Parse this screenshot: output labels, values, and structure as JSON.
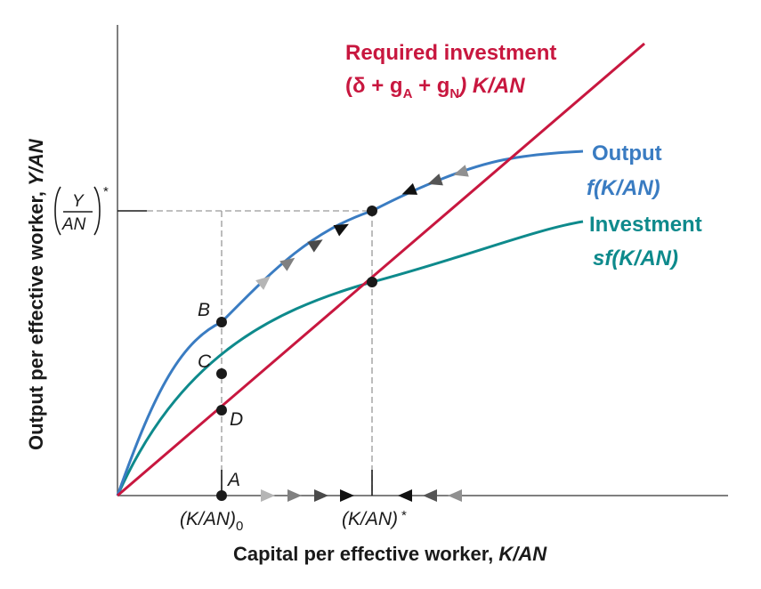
{
  "axes": {
    "x_label_text": "Capital per effective worker, ",
    "x_label_var": "K/AN",
    "y_label_text": "Output per effective worker, ",
    "y_label_var": "Y/AN"
  },
  "curves": {
    "required": {
      "title": "Required investment",
      "formula_open": "(δ + g",
      "sub_a": "A",
      "plus": " + g",
      "sub_n": "N",
      "formula_close": ") K/AN",
      "color": "#c8173f"
    },
    "output": {
      "title": "Output",
      "formula": "f(K/AN)",
      "color": "#3a7cc2"
    },
    "investment": {
      "title": "Investment",
      "formula": "sf(K/AN)",
      "color": "#0e8a8c"
    }
  },
  "points": {
    "A": "A",
    "B": "B",
    "C": "C",
    "D": "D"
  },
  "ticks": {
    "k0_main": "(K/AN)",
    "k0_sub": "0",
    "kstar_main": "(K/AN)",
    "kstar_sup": "*",
    "ystar_num": "Y",
    "ystar_den": "AN",
    "ystar_sup": "*"
  },
  "colors": {
    "axis": "#555555",
    "dash": "#999999",
    "dot": "#1a1a1a"
  }
}
